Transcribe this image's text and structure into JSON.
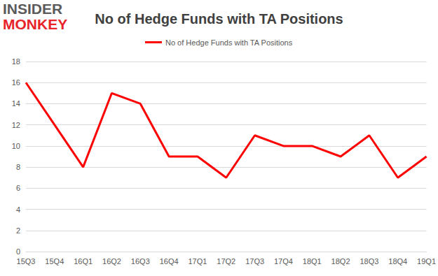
{
  "chart_data": {
    "type": "line",
    "title": "No of Hedge Funds with TA Positions",
    "annotations": [
      "INSIDER",
      "MONKEY"
    ],
    "categories": [
      "15Q3",
      "15Q4",
      "16Q1",
      "16Q2",
      "16Q3",
      "16Q4",
      "17Q1",
      "17Q2",
      "17Q3",
      "17Q4",
      "18Q1",
      "18Q2",
      "18Q3",
      "18Q4",
      "19Q1"
    ],
    "series": [
      {
        "name": "No of Hedge Funds with TA Positions",
        "color": "#ff0000",
        "values": [
          16,
          12,
          8,
          15,
          14,
          9,
          9,
          7,
          11,
          10,
          10,
          9,
          11,
          7,
          9
        ]
      }
    ],
    "ylim": [
      0,
      18
    ],
    "yticks": [
      0,
      2,
      4,
      6,
      8,
      10,
      12,
      14,
      16,
      18
    ],
    "grid": true,
    "legend": "top"
  }
}
